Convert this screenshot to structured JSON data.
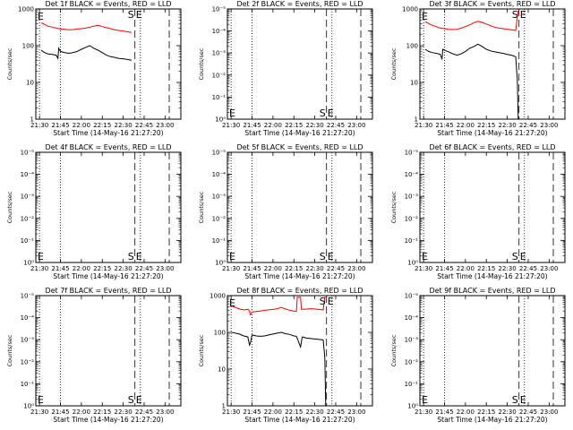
{
  "chart_data": [
    {
      "type": "line",
      "title": "Det 1f BLACK = Events, RED = LLD",
      "xlabel": "Start Time (14-May-16 21:27:20)",
      "ylabel": "Counts/sec",
      "xtick_labels": [
        "21:30",
        "21:45",
        "22:00",
        "22:15",
        "22:30",
        "22:45",
        "23:00"
      ],
      "ytick_labels": [
        "1",
        "10",
        "100",
        "1000"
      ],
      "ylim": [
        1,
        1000
      ],
      "yscale": "log",
      "markers": [
        "E",
        "S",
        "E"
      ],
      "series": [
        {
          "name": "LLD",
          "color": "#ff0000",
          "x": [
            21.52,
            21.56,
            21.6,
            21.65,
            21.7,
            21.75,
            21.8,
            21.85,
            21.9,
            21.95,
            22.0,
            22.05,
            22.1,
            22.15,
            22.2,
            22.25,
            22.3,
            22.35,
            22.4,
            22.45,
            22.5,
            22.55,
            22.6
          ],
          "values": [
            420,
            380,
            340,
            320,
            300,
            285,
            280,
            270,
            275,
            285,
            290,
            300,
            320,
            340,
            360,
            330,
            310,
            290,
            270,
            260,
            250,
            240,
            230
          ]
        },
        {
          "name": "Events",
          "color": "#000000",
          "x": [
            21.52,
            21.56,
            21.6,
            21.65,
            21.7,
            21.72,
            21.73,
            21.75,
            21.8,
            21.85,
            21.9,
            21.95,
            22.0,
            22.05,
            22.1,
            22.15,
            22.2,
            22.25,
            22.3,
            22.35,
            22.4,
            22.45,
            22.5,
            22.55,
            22.6
          ],
          "values": [
            75,
            65,
            60,
            58,
            55,
            45,
            85,
            70,
            65,
            62,
            65,
            70,
            80,
            90,
            100,
            85,
            75,
            65,
            55,
            50,
            48,
            45,
            44,
            42,
            40
          ]
        }
      ]
    },
    {
      "type": "line",
      "title": "Det 2f BLACK = Events, RED = LLD",
      "xlabel": "Start Time (14-May-16 21:27:20)",
      "ylabel": "Counts/sec",
      "xtick_labels": [
        "21:30",
        "21:45",
        "22:00",
        "22:15",
        "22:30",
        "22:45",
        "23:00"
      ],
      "ytick_labels": [
        "10⁰",
        "10⁻¹",
        "10⁻²",
        "10⁻³",
        "10⁻⁴",
        "10⁻⁵"
      ],
      "yscale": "log",
      "markers": [
        "E",
        "S",
        "E"
      ],
      "series": []
    },
    {
      "type": "line",
      "title": "Det 3f BLACK = Events, RED = LLD",
      "xlabel": "Start Time (14-May-16 21:27:20)",
      "ylabel": "Counts/sec",
      "xtick_labels": [
        "21:30",
        "21:45",
        "22:00",
        "22:15",
        "22:30",
        "22:45",
        "23:00"
      ],
      "ytick_labels": [
        "1",
        "10",
        "100",
        "1000"
      ],
      "ylim": [
        1,
        1000
      ],
      "yscale": "log",
      "markers": [
        "E",
        "S",
        "E"
      ],
      "series": [
        {
          "name": "LLD",
          "color": "#ff0000",
          "x": [
            21.52,
            21.56,
            21.6,
            21.65,
            21.7,
            21.75,
            21.8,
            21.85,
            21.9,
            21.95,
            22.0,
            22.05,
            22.1,
            22.15,
            22.2,
            22.25,
            22.3,
            22.35,
            22.4,
            22.45,
            22.5,
            22.55,
            22.6,
            22.62,
            22.63
          ],
          "values": [
            450,
            400,
            360,
            330,
            300,
            290,
            280,
            275,
            280,
            300,
            330,
            370,
            420,
            460,
            430,
            390,
            350,
            320,
            300,
            290,
            280,
            270,
            260,
            600,
            900
          ]
        },
        {
          "name": "Events",
          "color": "#000000",
          "x": [
            21.52,
            21.56,
            21.6,
            21.65,
            21.7,
            21.72,
            21.73,
            21.75,
            21.8,
            21.85,
            21.9,
            21.95,
            22.0,
            22.05,
            22.1,
            22.15,
            22.2,
            22.25,
            22.3,
            22.35,
            22.4,
            22.45,
            22.5,
            22.55,
            22.6,
            22.62,
            22.63
          ],
          "values": [
            80,
            70,
            65,
            62,
            58,
            42,
            80,
            75,
            68,
            60,
            55,
            60,
            70,
            85,
            95,
            110,
            95,
            80,
            72,
            68,
            65,
            62,
            58,
            55,
            50,
            12,
            1
          ]
        }
      ]
    },
    {
      "type": "line",
      "title": "Det 4f BLACK = Events, RED = LLD",
      "xlabel": "Start Time (14-May-16 21:27:20)",
      "ylabel": "Counts/sec",
      "xtick_labels": [
        "21:30",
        "21:45",
        "22:00",
        "22:15",
        "22:30",
        "22:45",
        "23:00"
      ],
      "ytick_labels": [
        "10⁰",
        "10⁻¹",
        "10⁻²",
        "10⁻³",
        "10⁻⁴",
        "10⁻⁵"
      ],
      "yscale": "log",
      "markers": [
        "E",
        "S",
        "E"
      ],
      "series": []
    },
    {
      "type": "line",
      "title": "Det 5f BLACK = Events, RED = LLD",
      "xlabel": "Start Time (14-May-16 21:27:20)",
      "ylabel": "Counts/sec",
      "xtick_labels": [
        "21:30",
        "21:45",
        "22:00",
        "22:15",
        "22:30",
        "22:45",
        "23:00"
      ],
      "ytick_labels": [
        "10⁰",
        "10⁻¹",
        "10⁻²",
        "10⁻³",
        "10⁻⁴",
        "10⁻⁵"
      ],
      "yscale": "log",
      "markers": [
        "E",
        "S",
        "E"
      ],
      "series": []
    },
    {
      "type": "line",
      "title": "Det 6f BLACK = Events, RED = LLD",
      "xlabel": "Start Time (14-May-16 21:27:20)",
      "ylabel": "Counts/sec",
      "xtick_labels": [
        "21:30",
        "21:45",
        "22:00",
        "22:15",
        "22:30",
        "22:45",
        "23:00"
      ],
      "ytick_labels": [
        "10⁰",
        "10⁻¹",
        "10⁻²",
        "10⁻³",
        "10⁻⁴",
        "10⁻⁵"
      ],
      "yscale": "log",
      "markers": [
        "E",
        "S",
        "E"
      ],
      "series": []
    },
    {
      "type": "line",
      "title": "Det 7f BLACK = Events, RED = LLD",
      "xlabel": "Start Time (14-May-16 21:27:20)",
      "ylabel": "Counts/sec",
      "xtick_labels": [
        "21:30",
        "21:45",
        "22:00",
        "22:15",
        "22:30",
        "22:45",
        "23:00"
      ],
      "ytick_labels": [
        "10⁰",
        "10⁻¹",
        "10⁻²",
        "10⁻³",
        "10⁻⁴",
        "10⁻⁵"
      ],
      "yscale": "log",
      "markers": [
        "E",
        "S",
        "E"
      ],
      "series": []
    },
    {
      "type": "line",
      "title": "Det 8f BLACK = Events, RED = LLD",
      "xlabel": "Start Time (14-May-16 21:27:20)",
      "ylabel": "Counts/sec",
      "xtick_labels": [
        "21:30",
        "21:45",
        "22:00",
        "22:15",
        "22:30",
        "22:45",
        "23:00"
      ],
      "ytick_labels": [
        "1",
        "10",
        "100",
        "1000"
      ],
      "ylim": [
        1,
        1000
      ],
      "yscale": "log",
      "markers": [
        "E",
        "S",
        "E"
      ],
      "series": [
        {
          "name": "LLD",
          "color": "#ff0000",
          "x": [
            21.51,
            21.55,
            21.6,
            21.65,
            21.7,
            21.72,
            21.73,
            21.75,
            21.8,
            21.85,
            21.9,
            21.95,
            22.0,
            22.05,
            22.1,
            22.15,
            22.2,
            22.25,
            22.28,
            22.29,
            22.33,
            22.34,
            22.4,
            22.45,
            22.5,
            22.55,
            22.6,
            22.62,
            22.63
          ],
          "values": [
            520,
            480,
            430,
            410,
            420,
            380,
            300,
            360,
            370,
            380,
            400,
            410,
            420,
            440,
            480,
            430,
            400,
            380,
            370,
            900,
            900,
            420,
            430,
            440,
            430,
            420,
            410,
            900,
            900
          ]
        },
        {
          "name": "Events",
          "color": "#000000",
          "x": [
            21.51,
            21.55,
            21.6,
            21.65,
            21.7,
            21.72,
            21.73,
            21.75,
            21.8,
            21.85,
            21.9,
            21.95,
            22.0,
            22.05,
            22.1,
            22.15,
            22.2,
            22.25,
            22.28,
            22.33,
            22.35,
            22.4,
            22.45,
            22.5,
            22.55,
            22.6,
            22.62,
            22.63
          ],
          "values": [
            100,
            95,
            90,
            80,
            75,
            45,
            50,
            85,
            80,
            78,
            80,
            85,
            90,
            95,
            100,
            92,
            88,
            80,
            78,
            40,
            75,
            70,
            68,
            66,
            64,
            62,
            20,
            1
          ]
        }
      ]
    },
    {
      "type": "line",
      "title": "Det 9f BLACK = Events, RED = LLD",
      "xlabel": "Start Time (14-May-16 21:27:20)",
      "ylabel": "Counts/sec",
      "xtick_labels": [
        "21:30",
        "21:45",
        "22:00",
        "22:15",
        "22:30",
        "22:45",
        "23:00"
      ],
      "ytick_labels": [
        "10⁰",
        "10⁻¹",
        "10⁻²",
        "10⁻³",
        "10⁻⁴",
        "10⁻⁵"
      ],
      "yscale": "log",
      "markers": [
        "E",
        "S",
        "E"
      ],
      "series": []
    }
  ]
}
